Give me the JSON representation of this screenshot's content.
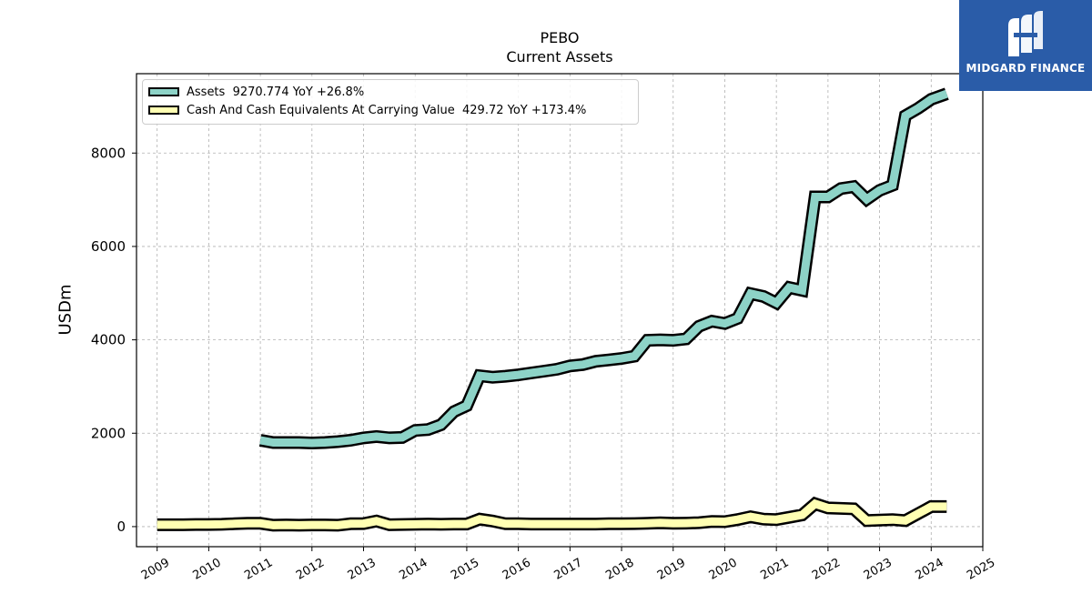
{
  "brand": {
    "name": "MIDGARD FINANCE",
    "color": "#2a5ca8"
  },
  "chart_data": {
    "type": "line",
    "title": "PEBO",
    "subtitle": "Current  Assets",
    "ylabel": "USDm",
    "xlabel": "",
    "grid": true,
    "legend_position": "top-left",
    "xlim": [
      2008.6,
      2025.0
    ],
    "ylim": [
      -430,
      9700
    ],
    "x_ticks": [
      "2009",
      "2010",
      "2011",
      "2012",
      "2013",
      "2014",
      "2015",
      "2016",
      "2017",
      "2018",
      "2019",
      "2020",
      "2021",
      "2022",
      "2023",
      "2024",
      "2025"
    ],
    "y_ticks": [
      "0",
      "2000",
      "4000",
      "6000",
      "8000"
    ],
    "series": [
      {
        "name": "Assets",
        "legend_label": "Assets  9270.774 YoY +26.8%",
        "color": "#8dd3c7",
        "x": [
          2011.0,
          2011.25,
          2011.5,
          2011.75,
          2012.0,
          2012.25,
          2012.5,
          2012.75,
          2013.0,
          2013.25,
          2013.5,
          2013.75,
          2014.0,
          2014.25,
          2014.5,
          2014.75,
          2015.0,
          2015.25,
          2015.5,
          2015.75,
          2016.0,
          2016.25,
          2016.5,
          2016.75,
          2017.0,
          2017.25,
          2017.5,
          2017.75,
          2018.0,
          2018.25,
          2018.5,
          2018.75,
          2019.0,
          2019.25,
          2019.5,
          2019.75,
          2020.0,
          2020.25,
          2020.5,
          2020.75,
          2021.0,
          2021.25,
          2021.5,
          2021.75,
          2022.0,
          2022.25,
          2022.5,
          2022.75,
          2023.0,
          2023.25,
          2023.5,
          2023.75,
          2024.0,
          2024.3
        ],
        "values": [
          1850,
          1800,
          1800,
          1800,
          1790,
          1800,
          1820,
          1850,
          1900,
          1930,
          1900,
          1910,
          2060,
          2080,
          2180,
          2460,
          2590,
          3230,
          3200,
          3220,
          3250,
          3290,
          3330,
          3370,
          3440,
          3470,
          3540,
          3570,
          3600,
          3650,
          3990,
          4000,
          3990,
          4020,
          4290,
          4400,
          4350,
          4460,
          4990,
          4930,
          4790,
          5120,
          5060,
          7060,
          7060,
          7240,
          7280,
          7010,
          7200,
          7310,
          8800,
          8960,
          9150,
          9270
        ]
      },
      {
        "name": "Cash And Cash Equivalents At Carrying Value",
        "legend_label": "Cash And Cash Equivalents At Carrying Value  429.72 YoY +173.4%",
        "color": "#ffffb3",
        "x": [
          2009.0,
          2009.25,
          2009.5,
          2009.75,
          2010.0,
          2010.25,
          2010.5,
          2010.75,
          2011.0,
          2011.25,
          2011.5,
          2011.75,
          2012.0,
          2012.25,
          2012.5,
          2012.75,
          2013.0,
          2013.25,
          2013.5,
          2013.75,
          2014.0,
          2014.25,
          2014.5,
          2014.75,
          2015.0,
          2015.25,
          2015.5,
          2015.75,
          2016.0,
          2016.25,
          2016.5,
          2016.75,
          2017.0,
          2017.25,
          2017.5,
          2017.75,
          2018.0,
          2018.25,
          2018.5,
          2018.75,
          2019.0,
          2019.25,
          2019.5,
          2019.75,
          2020.0,
          2020.25,
          2020.5,
          2020.75,
          2021.0,
          2021.25,
          2021.5,
          2021.75,
          2022.0,
          2022.25,
          2022.5,
          2022.75,
          2023.0,
          2023.25,
          2023.5,
          2023.75,
          2024.0,
          2024.3
        ],
        "values": [
          40,
          40,
          40,
          45,
          45,
          50,
          60,
          70,
          70,
          30,
          35,
          30,
          35,
          35,
          30,
          60,
          65,
          120,
          40,
          45,
          50,
          55,
          50,
          55,
          55,
          160,
          120,
          60,
          60,
          55,
          55,
          55,
          55,
          55,
          55,
          60,
          60,
          65,
          70,
          80,
          70,
          75,
          85,
          110,
          105,
          150,
          210,
          160,
          150,
          200,
          250,
          490,
          400,
          390,
          380,
          130,
          140,
          150,
          130,
          280,
          430,
          430
        ]
      }
    ]
  }
}
